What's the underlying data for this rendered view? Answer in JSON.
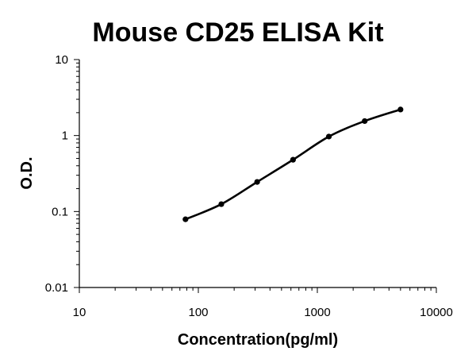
{
  "chart_data": {
    "type": "scatter",
    "title": "Mouse CD25 ELISA Kit",
    "xlabel": "Concentration(pg/ml)",
    "ylabel": "O.D.",
    "xscale": "log",
    "yscale": "log",
    "xlim": [
      10,
      10000
    ],
    "ylim": [
      0.01,
      10
    ],
    "x_ticks": [
      "10",
      "100",
      "1000",
      "10000"
    ],
    "y_ticks": [
      "0.01",
      "0.1",
      "1",
      "10"
    ],
    "grid": false,
    "legend": "none",
    "fit_line": true,
    "series": [
      {
        "x": [
          78,
          156,
          312,
          625,
          1250,
          2500,
          5000
        ],
        "y": [
          0.079,
          0.125,
          0.245,
          0.48,
          0.97,
          1.55,
          2.2
        ]
      }
    ]
  }
}
